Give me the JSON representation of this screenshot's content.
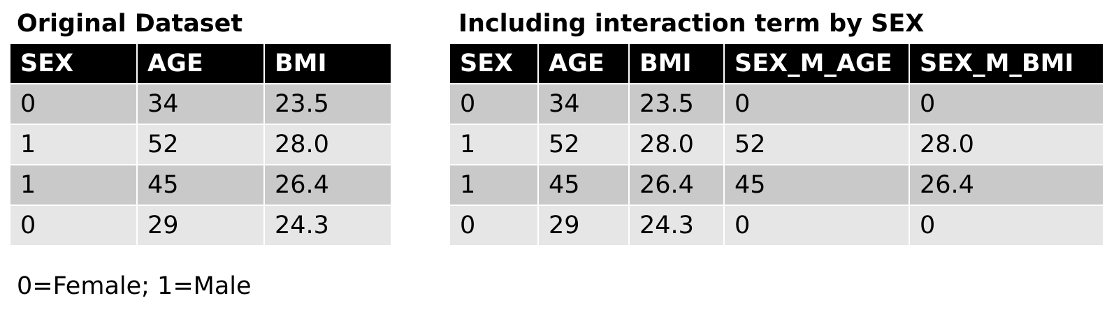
{
  "original": {
    "title": "Original Dataset",
    "headers": [
      "SEX",
      "AGE",
      "BMI"
    ],
    "rows": [
      [
        "0",
        "34",
        "23.5"
      ],
      [
        "1",
        "52",
        "28.0"
      ],
      [
        "1",
        "45",
        "26.4"
      ],
      [
        "0",
        "29",
        "24.3"
      ]
    ]
  },
  "interaction": {
    "title": "Including interaction term by SEX",
    "headers": [
      "SEX",
      "AGE",
      "BMI",
      "SEX_M_AGE",
      "SEX_M_BMI"
    ],
    "rows": [
      [
        "0",
        "34",
        "23.5",
        "0",
        "0"
      ],
      [
        "1",
        "52",
        "28.0",
        "52",
        "28.0"
      ],
      [
        "1",
        "45",
        "26.4",
        "45",
        "26.4"
      ],
      [
        "0",
        "29",
        "24.3",
        "0",
        "0"
      ]
    ]
  },
  "footnote": "0=Female; 1=Male",
  "colors": {
    "header_bg": "#000000",
    "header_text": "#ffffff",
    "row_dark": "#c9c9c9",
    "row_light": "#e6e6e6"
  }
}
